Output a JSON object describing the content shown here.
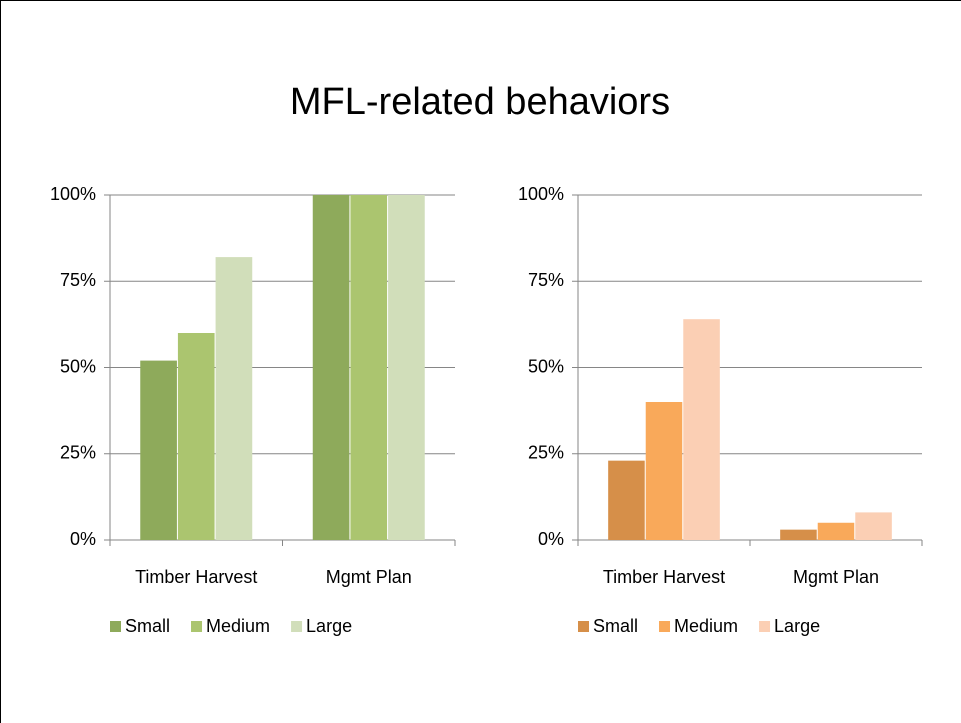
{
  "title": "MFL-related behaviors",
  "chart_data": [
    {
      "type": "bar",
      "categories": [
        "Timber Harvest",
        "Mgmt Plan"
      ],
      "series": [
        {
          "name": "Small",
          "color": "#8eaa5b",
          "values": [
            52,
            100
          ]
        },
        {
          "name": "Medium",
          "color": "#abc56f",
          "values": [
            60,
            100
          ]
        },
        {
          "name": "Large",
          "color": "#d1deba",
          "values": [
            82,
            100
          ]
        }
      ],
      "ylim": [
        0,
        100
      ],
      "yticks": [
        {
          "value": 0,
          "label": "0%"
        },
        {
          "value": 25,
          "label": "25%"
        },
        {
          "value": 50,
          "label": "50%"
        },
        {
          "value": 75,
          "label": "75%"
        },
        {
          "value": 100,
          "label": "100%"
        }
      ],
      "grid": true,
      "legend": "bottom"
    },
    {
      "type": "bar",
      "categories": [
        "Timber Harvest",
        "Mgmt Plan"
      ],
      "series": [
        {
          "name": "Small",
          "color": "#d68f49",
          "values": [
            23,
            3
          ]
        },
        {
          "name": "Medium",
          "color": "#f9a95a",
          "values": [
            40,
            5
          ]
        },
        {
          "name": "Large",
          "color": "#fbcfb4",
          "values": [
            64,
            8
          ]
        }
      ],
      "ylim": [
        0,
        100
      ],
      "yticks": [
        {
          "value": 0,
          "label": "0%"
        },
        {
          "value": 25,
          "label": "25%"
        },
        {
          "value": 50,
          "label": "50%"
        },
        {
          "value": 75,
          "label": "75%"
        },
        {
          "value": 100,
          "label": "100%"
        }
      ],
      "grid": true,
      "legend": "bottom"
    }
  ]
}
